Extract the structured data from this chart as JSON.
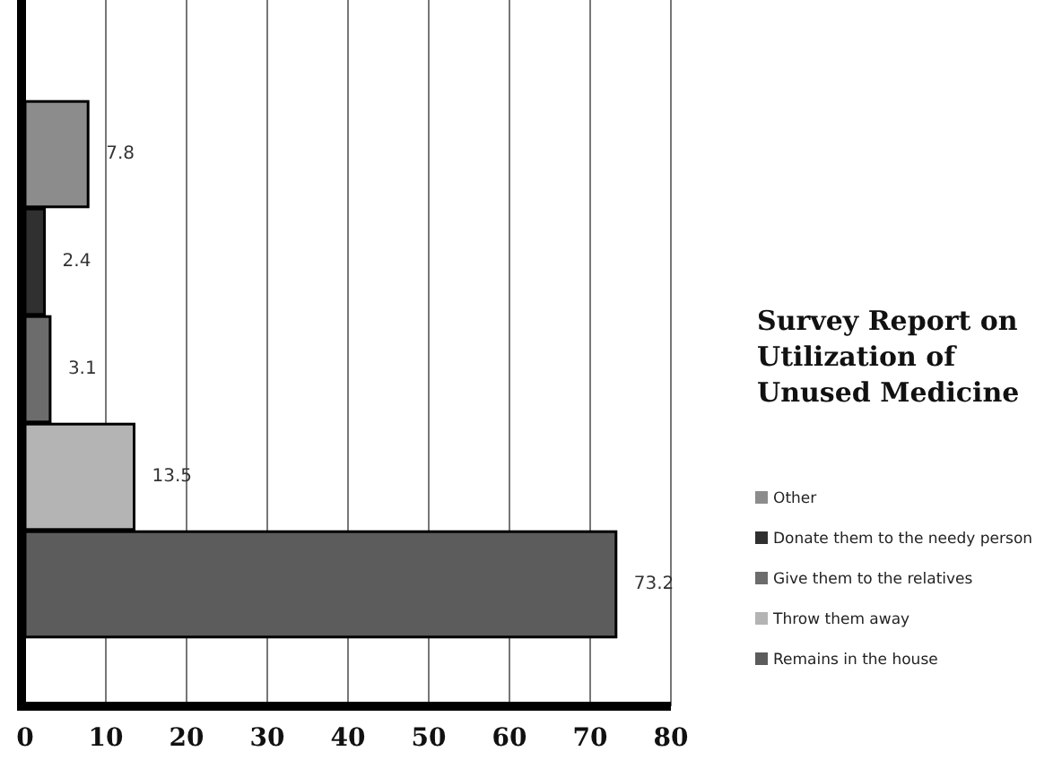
{
  "chart_data": {
    "type": "bar",
    "orientation": "horizontal",
    "title": "Survey Report on\nUtilization of\nUnused Medicine",
    "categories": [
      null
    ],
    "series": [
      {
        "name": "Other",
        "color": "#8c8c8c",
        "values": [
          7.8
        ]
      },
      {
        "name": "Donate them to the needy person",
        "color": "#303030",
        "values": [
          2.4
        ]
      },
      {
        "name": "Give them to the relatives",
        "color": "#6c6c6c",
        "values": [
          3.1
        ]
      },
      {
        "name": "Throw them away",
        "color": "#b4b4b4",
        "values": [
          13.5
        ]
      },
      {
        "name": "Remains in the house",
        "color": "#5c5c5c",
        "values": [
          73.2
        ]
      }
    ],
    "xlim": [
      0,
      80
    ],
    "xticks": [
      0,
      10,
      20,
      30,
      40,
      50,
      60,
      70,
      80
    ],
    "grid": "x",
    "data_labels": true,
    "legend": "right",
    "tick_labels": "x"
  }
}
